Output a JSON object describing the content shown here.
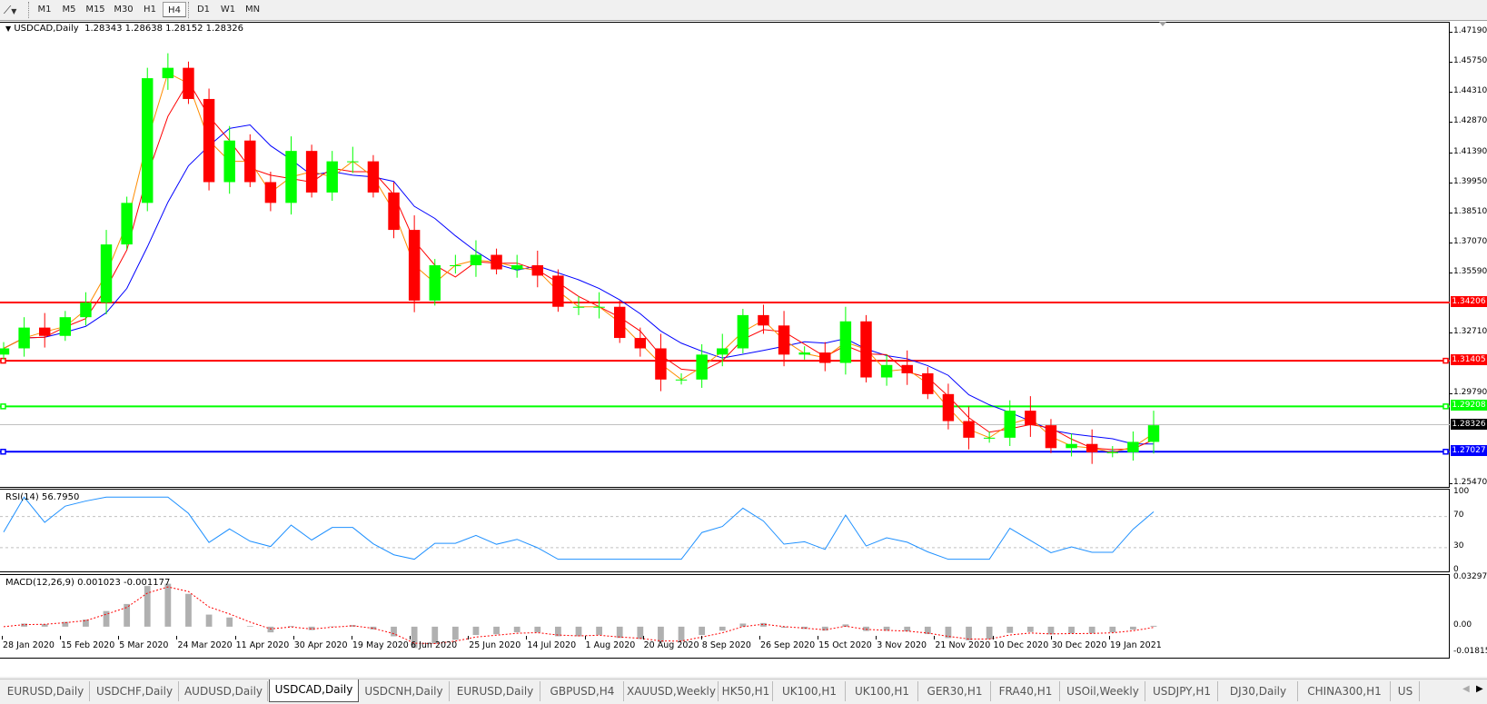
{
  "toolbar": {
    "tool_icon": "line-tool-icon",
    "timeframes": [
      "M1",
      "M5",
      "M15",
      "M30",
      "H1",
      "H4",
      "D1",
      "W1",
      "MN"
    ],
    "active_timeframe": "H4"
  },
  "chart_header": {
    "symbol": "USDCAD,Daily",
    "ohlc": "1.28343 1.28638 1.28152 1.28326"
  },
  "indicators": {
    "rsi_label": "RSI(14) 56.7950",
    "macd_label": "MACD(12,26,9) 0.001023 -0.001177",
    "rsi_ticks": [
      "100",
      "70",
      "30",
      "0"
    ],
    "macd_ticks": [
      "0.032972",
      "0.00",
      "-0.01815"
    ]
  },
  "colors": {
    "bull": "#00ff00",
    "bear": "#ff0000",
    "ma_fast": "#ff8c00",
    "ma_mid": "#ff0000",
    "ma_slow": "#0000ff",
    "rsi": "#1e90ff",
    "macd_hist": "#b0b0b0",
    "macd_signal": "#ff0000"
  },
  "chart_data": {
    "type": "candlestick",
    "title": "USDCAD,Daily",
    "ylim": [
      1.2529,
      1.4767
    ],
    "y_ticks": [
      "1.47190",
      "1.45750",
      "1.44310",
      "1.42870",
      "1.41390",
      "1.39950",
      "1.38510",
      "1.37070",
      "1.35590",
      "1.32710",
      "1.29790",
      "1.25470"
    ],
    "x_ticks": [
      "28 Jan 2020",
      "15 Feb 2020",
      "5 Mar 2020",
      "24 Mar 2020",
      "11 Apr 2020",
      "30 Apr 2020",
      "19 May 2020",
      "6 Jun 2020",
      "25 Jun 2020",
      "14 Jul 2020",
      "1 Aug 2020",
      "20 Aug 2020",
      "8 Sep 2020",
      "26 Sep 2020",
      "15 Oct 2020",
      "3 Nov 2020",
      "21 Nov 2020",
      "10 Dec 2020",
      "30 Dec 2020",
      "19 Jan 2021"
    ],
    "closes": [
      1.32,
      1.33,
      1.326,
      1.335,
      1.342,
      1.37,
      1.39,
      1.45,
      1.455,
      1.44,
      1.4,
      1.42,
      1.4,
      1.39,
      1.415,
      1.395,
      1.41,
      1.41,
      1.395,
      1.377,
      1.343,
      1.36,
      1.36,
      1.365,
      1.358,
      1.36,
      1.355,
      1.34,
      1.34,
      1.34,
      1.325,
      1.32,
      1.305,
      1.305,
      1.317,
      1.32,
      1.336,
      1.331,
      1.317,
      1.318,
      1.313,
      1.333,
      1.306,
      1.312,
      1.308,
      1.298,
      1.285,
      1.277,
      1.277,
      1.29,
      1.283,
      1.272,
      1.274,
      1.27,
      1.27,
      1.275,
      1.283
    ],
    "horizontal_lines": [
      {
        "price": "1.34206",
        "color": "#ff0000"
      },
      {
        "price": "1.31405",
        "color": "#ff0000"
      },
      {
        "price": "1.29208",
        "color": "#00ff00"
      },
      {
        "price": "1.28326",
        "color": "#000000",
        "kind": "bid"
      },
      {
        "price": "1.27027",
        "color": "#0000ff"
      }
    ],
    "rsi_levels": [
      70,
      30
    ],
    "macd_range": [
      -0.01815,
      0.032972
    ]
  },
  "tabs": [
    "EURUSD,Daily",
    "USDCHF,Daily",
    "AUDUSD,Daily",
    "USDCAD,Daily",
    "USDCNH,Daily",
    "EURUSD,Daily",
    "GBPUSD,H4",
    "XAUUSD,Weekly",
    "HK50,H1",
    "UK100,H1",
    "UK100,H1",
    "GER30,H1",
    "FRA40,H1",
    "USOil,Weekly",
    "USDJPY,H1",
    "DJ30,Daily",
    "CHINA300,H1",
    "US"
  ],
  "active_tab": "USDCAD,Daily"
}
